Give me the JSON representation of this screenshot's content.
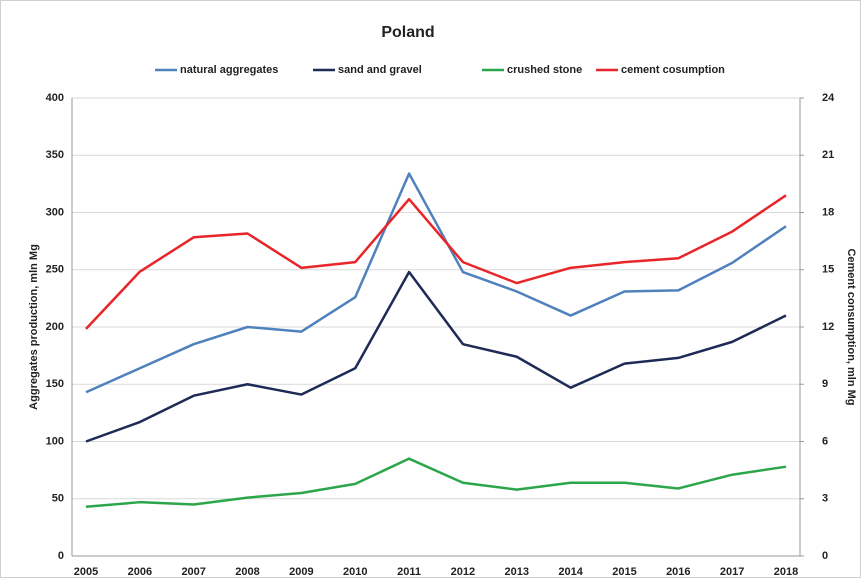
{
  "chart_data": {
    "type": "line",
    "title": "Poland",
    "categories": [
      "2005",
      "2006",
      "2007",
      "2008",
      "2009",
      "2010",
      "2011",
      "2012",
      "2013",
      "2014",
      "2015",
      "2016",
      "2017",
      "2018"
    ],
    "series": [
      {
        "name": "natural aggregates",
        "color": "#4f81bd",
        "values": [
          143,
          164,
          185,
          200,
          196,
          226,
          334,
          248,
          231,
          210,
          231,
          232,
          256,
          288
        ]
      },
      {
        "name": "sand and gravel",
        "color": "#1f2a56",
        "values": [
          100,
          117,
          140,
          150,
          141,
          164,
          248,
          185,
          174,
          147,
          168,
          173,
          187,
          210
        ]
      },
      {
        "name": "crushed stone",
        "color": "#2ca64b",
        "values": [
          43,
          47,
          45,
          51,
          55,
          63,
          85,
          64,
          58,
          64,
          64,
          59,
          71,
          78
        ]
      },
      {
        "name": "cement cosumption",
        "color": "#e8262a",
        "axis": "y2",
        "values": [
          11.9,
          14.9,
          16.7,
          16.9,
          15.1,
          15.4,
          18.7,
          15.4,
          14.3,
          15.1,
          15.4,
          15.6,
          17.0,
          18.9
        ]
      }
    ],
    "ylabel": "Aggregates production, mln Mg",
    "y2label": "Cement consumption, mln Mg",
    "ylim": [
      0,
      400
    ],
    "yticks": [
      0,
      50,
      100,
      150,
      200,
      250,
      300,
      350,
      400
    ],
    "y2lim": [
      0,
      24
    ],
    "y2ticks": [
      0,
      3,
      6,
      9,
      12,
      15,
      18,
      21,
      24
    ],
    "grid": true,
    "legend": "top"
  }
}
